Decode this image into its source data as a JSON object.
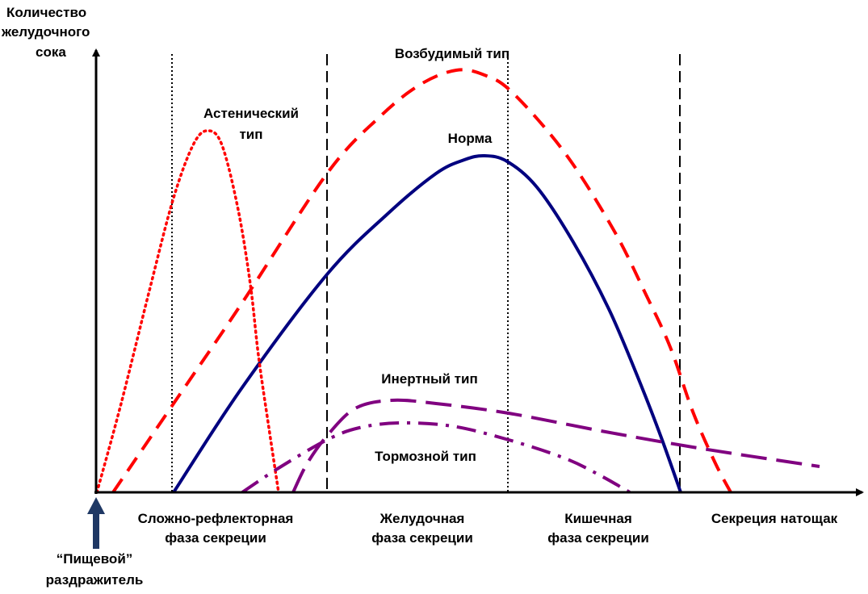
{
  "chart_data": {
    "type": "line",
    "y_axis_title_lines": [
      "Количество",
      "желудочного",
      "сока"
    ],
    "stimulus_label_lines": [
      "“Пищевой”",
      "раздражитель"
    ],
    "phases": [
      {
        "lines": [
          "Сложно-рефлекторная",
          "фаза секреции"
        ]
      },
      {
        "lines": [
          "Желудочная",
          "фаза секреции"
        ]
      },
      {
        "lines": [
          "Кишечная",
          "фаза секреции"
        ]
      },
      {
        "lines": [
          "Секреция натощак"
        ]
      }
    ],
    "series": [
      {
        "name_lines": [
          "Возбудимый тип"
        ],
        "color": "#ff0000",
        "style": "dashed",
        "points": [
          [
            140,
            610
          ],
          [
            215,
            500
          ],
          [
            300,
            375
          ],
          [
            405,
            215
          ],
          [
            470,
            145
          ],
          [
            520,
            105
          ],
          [
            565,
            87
          ],
          [
            600,
            93
          ],
          [
            635,
            115
          ],
          [
            700,
            190
          ],
          [
            760,
            285
          ],
          [
            800,
            365
          ],
          [
            830,
            430
          ],
          [
            858,
            510
          ],
          [
            885,
            572
          ],
          [
            905,
            610
          ]
        ]
      },
      {
        "name_lines": [
          "Норма"
        ],
        "color": "#00007f",
        "style": "solid",
        "points": [
          [
            215,
            610
          ],
          [
            300,
            480
          ],
          [
            405,
            340
          ],
          [
            480,
            265
          ],
          [
            540,
            215
          ],
          [
            575,
            198
          ],
          [
            600,
            193
          ],
          [
            628,
            200
          ],
          [
            665,
            232
          ],
          [
            710,
            300
          ],
          [
            755,
            385
          ],
          [
            795,
            480
          ],
          [
            820,
            545
          ],
          [
            843,
            610
          ]
        ]
      },
      {
        "name_lines": [
          "Астенический",
          "тип"
        ],
        "color": "#ff0000",
        "style": "dotted",
        "points": [
          [
            120,
            610
          ],
          [
            150,
            500
          ],
          [
            185,
            360
          ],
          [
            215,
            245
          ],
          [
            240,
            178
          ],
          [
            258,
            162
          ],
          [
            275,
            180
          ],
          [
            295,
            260
          ],
          [
            310,
            352
          ],
          [
            320,
            440
          ],
          [
            333,
            530
          ],
          [
            345,
            610
          ]
        ]
      },
      {
        "name_lines": [
          "Инертный тип"
        ],
        "color": "#800080",
        "style": "longdash",
        "points": [
          [
            363,
            610
          ],
          [
            380,
            575
          ],
          [
            405,
            540
          ],
          [
            440,
            506
          ],
          [
            485,
            496
          ],
          [
            540,
            500
          ],
          [
            630,
            512
          ],
          [
            750,
            535
          ],
          [
            870,
            556
          ],
          [
            1015,
            578
          ]
        ]
      },
      {
        "name_lines": [
          "Тормозной тип"
        ],
        "color": "#800080",
        "style": "dashdot",
        "points": [
          [
            300,
            610
          ],
          [
            345,
            580
          ],
          [
            405,
            545
          ],
          [
            445,
            530
          ],
          [
            495,
            524
          ],
          [
            560,
            528
          ],
          [
            630,
            545
          ],
          [
            700,
            568
          ],
          [
            745,
            590
          ],
          [
            780,
            610
          ]
        ]
      }
    ]
  }
}
